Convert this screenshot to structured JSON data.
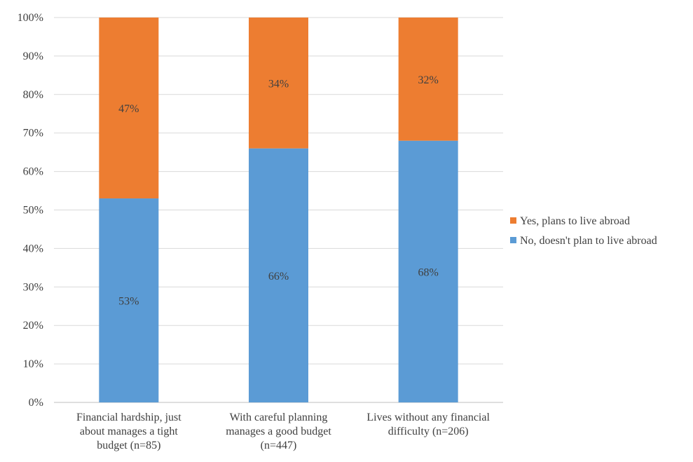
{
  "chart_data": {
    "type": "bar",
    "stacked": true,
    "categories": [
      [
        "Financial hardship, just",
        "about manages a tight",
        "budget (n=85)"
      ],
      [
        "With careful planning",
        "manages a good budget",
        "(n=447)"
      ],
      [
        "Lives without any financial",
        "difficulty (n=206)"
      ]
    ],
    "series": [
      {
        "name": "No, doesn't plan to live abroad",
        "values": [
          53,
          66,
          68
        ],
        "labels": [
          "53%",
          "66%",
          "68%"
        ],
        "color": "#5B9BD5"
      },
      {
        "name": "Yes, plans to live abroad",
        "values": [
          47,
          34,
          32
        ],
        "labels": [
          "47%",
          "34%",
          "32%"
        ],
        "color": "#ED7D31"
      }
    ],
    "ylim": [
      0,
      100
    ],
    "yticks": [
      "0%",
      "10%",
      "20%",
      "30%",
      "40%",
      "50%",
      "60%",
      "70%",
      "80%",
      "90%",
      "100%"
    ],
    "grid": true,
    "legend_position": "right",
    "legend_order": [
      1,
      0
    ]
  },
  "colors": {
    "grid": "#d9d9d9",
    "axis": "#bfbfbf",
    "text": "#404040"
  }
}
